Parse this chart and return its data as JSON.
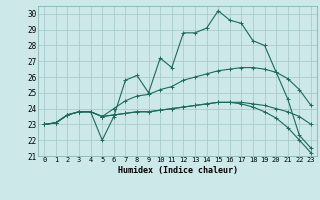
{
  "xlabel": "Humidex (Indice chaleur)",
  "bg_color": "#cce8e8",
  "grid_color": "#aacccc",
  "line_color": "#1a6b5a",
  "xlim": [
    -0.5,
    23.5
  ],
  "ylim": [
    21.0,
    30.5
  ],
  "xtick_vals": [
    0,
    1,
    2,
    3,
    4,
    5,
    6,
    7,
    8,
    9,
    10,
    11,
    12,
    13,
    14,
    15,
    16,
    17,
    18,
    19,
    20,
    21,
    22,
    23
  ],
  "xtick_labels": [
    "0",
    "1",
    "2",
    "3",
    "4",
    "5",
    "6",
    "7",
    "8",
    "9",
    "10",
    "11",
    "12",
    "13",
    "14",
    "15",
    "16",
    "17",
    "18",
    "19",
    "20",
    "21",
    "22",
    "23"
  ],
  "ytick_vals": [
    21,
    22,
    23,
    24,
    25,
    26,
    27,
    28,
    29,
    30
  ],
  "ytick_labels": [
    "21",
    "22",
    "23",
    "24",
    "25",
    "26",
    "27",
    "28",
    "29",
    "30"
  ],
  "series": [
    [
      23.0,
      23.1,
      23.6,
      23.8,
      23.8,
      22.0,
      23.5,
      25.8,
      26.1,
      25.0,
      27.2,
      26.6,
      28.8,
      28.8,
      29.1,
      30.2,
      29.6,
      29.4,
      28.3,
      28.0,
      26.3,
      24.6,
      22.3,
      21.5
    ],
    [
      23.0,
      23.1,
      23.6,
      23.8,
      23.8,
      23.5,
      24.0,
      24.5,
      24.8,
      24.9,
      25.2,
      25.4,
      25.8,
      26.0,
      26.2,
      26.4,
      26.5,
      26.6,
      26.6,
      26.5,
      26.3,
      25.9,
      25.2,
      24.2
    ],
    [
      23.0,
      23.1,
      23.6,
      23.8,
      23.8,
      23.5,
      23.6,
      23.7,
      23.8,
      23.8,
      23.9,
      24.0,
      24.1,
      24.2,
      24.3,
      24.4,
      24.4,
      24.4,
      24.3,
      24.2,
      24.0,
      23.8,
      23.5,
      23.0
    ],
    [
      23.0,
      23.1,
      23.6,
      23.8,
      23.8,
      23.5,
      23.6,
      23.7,
      23.8,
      23.8,
      23.9,
      24.0,
      24.1,
      24.2,
      24.3,
      24.4,
      24.4,
      24.3,
      24.1,
      23.8,
      23.4,
      22.8,
      22.0,
      21.2
    ]
  ]
}
